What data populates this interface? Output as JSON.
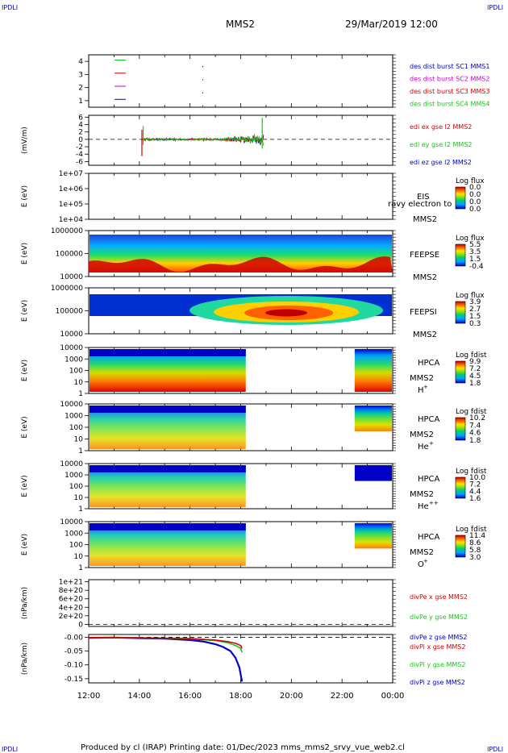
{
  "corner_label": "IPDLI",
  "header": {
    "spacecraft": "MMS2",
    "datetime": "29/Mar/2019 12:00"
  },
  "footer": "Produced by cl (IRAP)   Printing date: 01/Dec/2023   mms_mms2_srvy_vue_web2.cl",
  "colors": {
    "red": "#d40000",
    "green": "#14c814",
    "blue": "#0000c8",
    "magenta": "#c800c8"
  },
  "chart_data": [
    {
      "type": "line",
      "panel": "des-dist-burst",
      "ylim": [
        0.5,
        4.5
      ],
      "yticks": [
        1,
        2,
        3,
        4
      ],
      "legend": [
        {
          "text": "des dist burst SC1 MMS1",
          "color": "#0000c8"
        },
        {
          "text": "des dist burst SC2 MMS2",
          "color": "#c800c8"
        },
        {
          "text": "des dist burst SC3 MMS3",
          "color": "#d40000"
        },
        {
          "text": "des dist burst SC4 MMS4",
          "color": "#14c814"
        }
      ]
    },
    {
      "type": "line",
      "panel": "edi-e",
      "ylabel": "(mV/m)",
      "ylim": [
        -7,
        6.5
      ],
      "yticks": [
        "6",
        "4",
        "2",
        "0",
        "-2",
        "-4",
        "-6"
      ],
      "legend": [
        {
          "text": "edi ex gse l2 MMS2",
          "color": "#d40000"
        },
        {
          "text": "edi ey gse l2 MMS2",
          "color": "#14c814"
        },
        {
          "text": "edi ez gse l2 MMS2",
          "color": "#0000c8"
        }
      ]
    },
    {
      "type": "heatmap",
      "panel": "eis",
      "ylabel": "E (eV)",
      "yticks": [
        "1e+07",
        "1e+06",
        "1e+05",
        "1e+04"
      ],
      "label_lines": [
        "EIS",
        "MMS2"
      ],
      "overlay_text": "ravy electron to",
      "colorbar": {
        "title": "Log flux",
        "ticks": [
          "0.0",
          "0.0",
          "0.0",
          "0.0"
        ]
      }
    },
    {
      "type": "heatmap",
      "panel": "feepse",
      "ylabel": "E (eV)",
      "yticks": [
        "1000000",
        "100000",
        "10000"
      ],
      "label_lines": [
        "FEEPSE",
        "MMS2"
      ],
      "colorbar": {
        "title": "Log flux",
        "ticks": [
          "5.5",
          "3.5",
          "1.5",
          "-0.4"
        ]
      }
    },
    {
      "type": "heatmap",
      "panel": "feepsi",
      "ylabel": "E (eV)",
      "yticks": [
        "1000000",
        "100000",
        "10000"
      ],
      "label_lines": [
        "FEEPSI",
        "MMS2"
      ],
      "colorbar": {
        "title": "Log flux",
        "ticks": [
          "3.9",
          "2.7",
          "1.5",
          "0.3"
        ]
      }
    },
    {
      "type": "heatmap",
      "panel": "hpca-h",
      "ylabel": "E (eV)",
      "yticks": [
        "10000",
        "1000",
        "100",
        "10",
        "1"
      ],
      "label_lines": [
        "HPCA",
        "MMS2"
      ],
      "species": "H",
      "charge": "+",
      "colorbar": {
        "title": "Log fdist",
        "ticks": [
          "9.9",
          "7.2",
          "4.5",
          "1.8"
        ]
      }
    },
    {
      "type": "heatmap",
      "panel": "hpca-he",
      "ylabel": "E (eV)",
      "yticks": [
        "10000",
        "1000",
        "100",
        "10",
        "1"
      ],
      "label_lines": [
        "HPCA",
        "MMS2"
      ],
      "species": "He",
      "charge": "+",
      "colorbar": {
        "title": "Log fdist",
        "ticks": [
          "10.2",
          "7.4",
          "4.6",
          "1.8"
        ]
      }
    },
    {
      "type": "heatmap",
      "panel": "hpca-hepp",
      "ylabel": "E (eV)",
      "yticks": [
        "10000",
        "1000",
        "100",
        "10",
        "1"
      ],
      "label_lines": [
        "HPCA",
        "MMS2"
      ],
      "species": "He",
      "charge": "++",
      "colorbar": {
        "title": "Log fdist",
        "ticks": [
          "10.0",
          "7.2",
          "4.4",
          "1.6"
        ]
      }
    },
    {
      "type": "heatmap",
      "panel": "hpca-o",
      "ylabel": "E (eV)",
      "yticks": [
        "10000",
        "1000",
        "100",
        "10",
        "1"
      ],
      "label_lines": [
        "HPCA",
        "MMS2"
      ],
      "species": "O",
      "charge": "+",
      "colorbar": {
        "title": "Log fdist",
        "ticks": [
          "11.4",
          "8.6",
          "5.8",
          "3.0"
        ]
      }
    },
    {
      "type": "line",
      "panel": "divpe",
      "ylabel": "(nPa/km)",
      "ylim": [
        -5e+19,
        1.05e+21
      ],
      "yticks": [
        "1e+21",
        "8e+20",
        "6e+20",
        "4e+20",
        "2e+20",
        "0"
      ],
      "legend": [
        {
          "text": "divPe x gse MMS2",
          "color": "#d40000"
        },
        {
          "text": "divPe y gse MMS2",
          "color": "#14c814"
        },
        {
          "text": "divPe z gse MMS2",
          "color": "#0000c8"
        }
      ]
    },
    {
      "type": "line",
      "panel": "divpi",
      "ylabel": "(nPa/km)",
      "ylim": [
        -0.165,
        0.01
      ],
      "yticks": [
        "-0.00",
        "-0.05",
        "-0.10",
        "-0.15"
      ],
      "legend": [
        {
          "text": "divPi x gse MMS2",
          "color": "#d40000"
        },
        {
          "text": "divPi y gse MMS2",
          "color": "#14c814"
        },
        {
          "text": "divPi z gse MMS2",
          "color": "#0000c8"
        }
      ],
      "series": [
        {
          "color": "#0000c8",
          "x": [
            12.0,
            13.0,
            14.0,
            15.0,
            16.0,
            16.5,
            17.0,
            17.3,
            17.6,
            17.8,
            17.95,
            18.05
          ],
          "y": [
            -0.002,
            -0.001,
            -0.003,
            -0.005,
            -0.01,
            -0.015,
            -0.025,
            -0.035,
            -0.05,
            -0.075,
            -0.11,
            -0.16
          ]
        },
        {
          "color": "#14c814",
          "x": [
            12.0,
            14.0,
            16.0,
            17.0,
            17.5,
            17.8,
            18.0,
            18.05
          ],
          "y": [
            -0.001,
            -0.002,
            -0.006,
            -0.012,
            -0.02,
            -0.03,
            -0.04,
            -0.055
          ]
        },
        {
          "color": "#d40000",
          "x": [
            12.0,
            14.0,
            16.0,
            17.0,
            17.5,
            17.8,
            18.0,
            18.05
          ],
          "y": [
            -0.001,
            -0.002,
            -0.005,
            -0.01,
            -0.016,
            -0.022,
            -0.03,
            -0.04
          ]
        }
      ]
    }
  ],
  "time_axis": {
    "ticks": [
      "12:00",
      "14:00",
      "16:00",
      "18:00",
      "20:00",
      "22:00",
      "00:00"
    ]
  }
}
